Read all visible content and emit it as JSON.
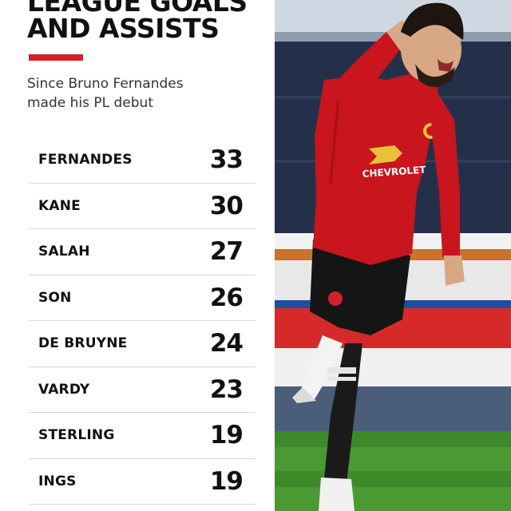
{
  "title_lines": [
    "LEAGUE GOALS",
    "AND ASSISTS"
  ],
  "subtitle_lines": [
    "Since Bruno Fernandes",
    "made his PL debut"
  ],
  "colors": {
    "accent": "#d1222b",
    "text": "#111111"
  },
  "rows": [
    {
      "name": "FERNANDES",
      "value": "33"
    },
    {
      "name": "KANE",
      "value": "30"
    },
    {
      "name": "SALAH",
      "value": "27"
    },
    {
      "name": "SON",
      "value": "26"
    },
    {
      "name": "DE BRUYNE",
      "value": "24"
    },
    {
      "name": "VARDY",
      "value": "23"
    },
    {
      "name": "STERLING",
      "value": "19"
    },
    {
      "name": "INGS",
      "value": "19"
    }
  ],
  "photo": {
    "shirt_sponsor": "CHEVROLET"
  }
}
